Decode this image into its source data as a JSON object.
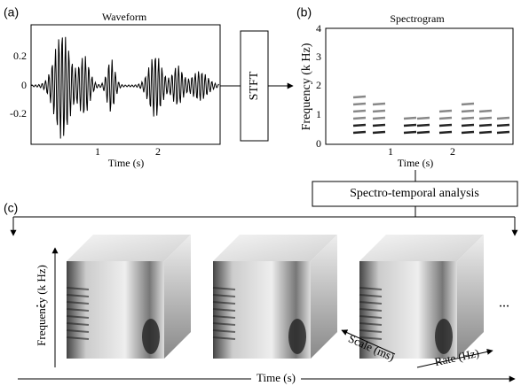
{
  "panel_a": {
    "label": "(a)",
    "title": "Waveform",
    "yticks": [
      "0.2",
      "0",
      "-0.2"
    ],
    "xticks": [
      "1",
      "2"
    ],
    "xlabel": "Time (s)"
  },
  "stft": {
    "label": "STFT"
  },
  "panel_b": {
    "label": "(b)",
    "title": "Spectrogram",
    "ylabel": "Frequency (k Hz)",
    "yticks": [
      "0",
      "1",
      "2",
      "3",
      "4"
    ],
    "xticks": [
      "1",
      "2"
    ],
    "xlabel": "Time (s)"
  },
  "analysis": {
    "label": "Spectro-temporal analysis"
  },
  "panel_c": {
    "label": "(c)",
    "ellipsis_left": "...",
    "ellipsis_right": "...",
    "frequency_axis": "Frequency (k Hz)",
    "scale_axis": "Scale (ms)",
    "rate_axis": "Rate (Hz)",
    "time_axis": "Time (s)"
  }
}
